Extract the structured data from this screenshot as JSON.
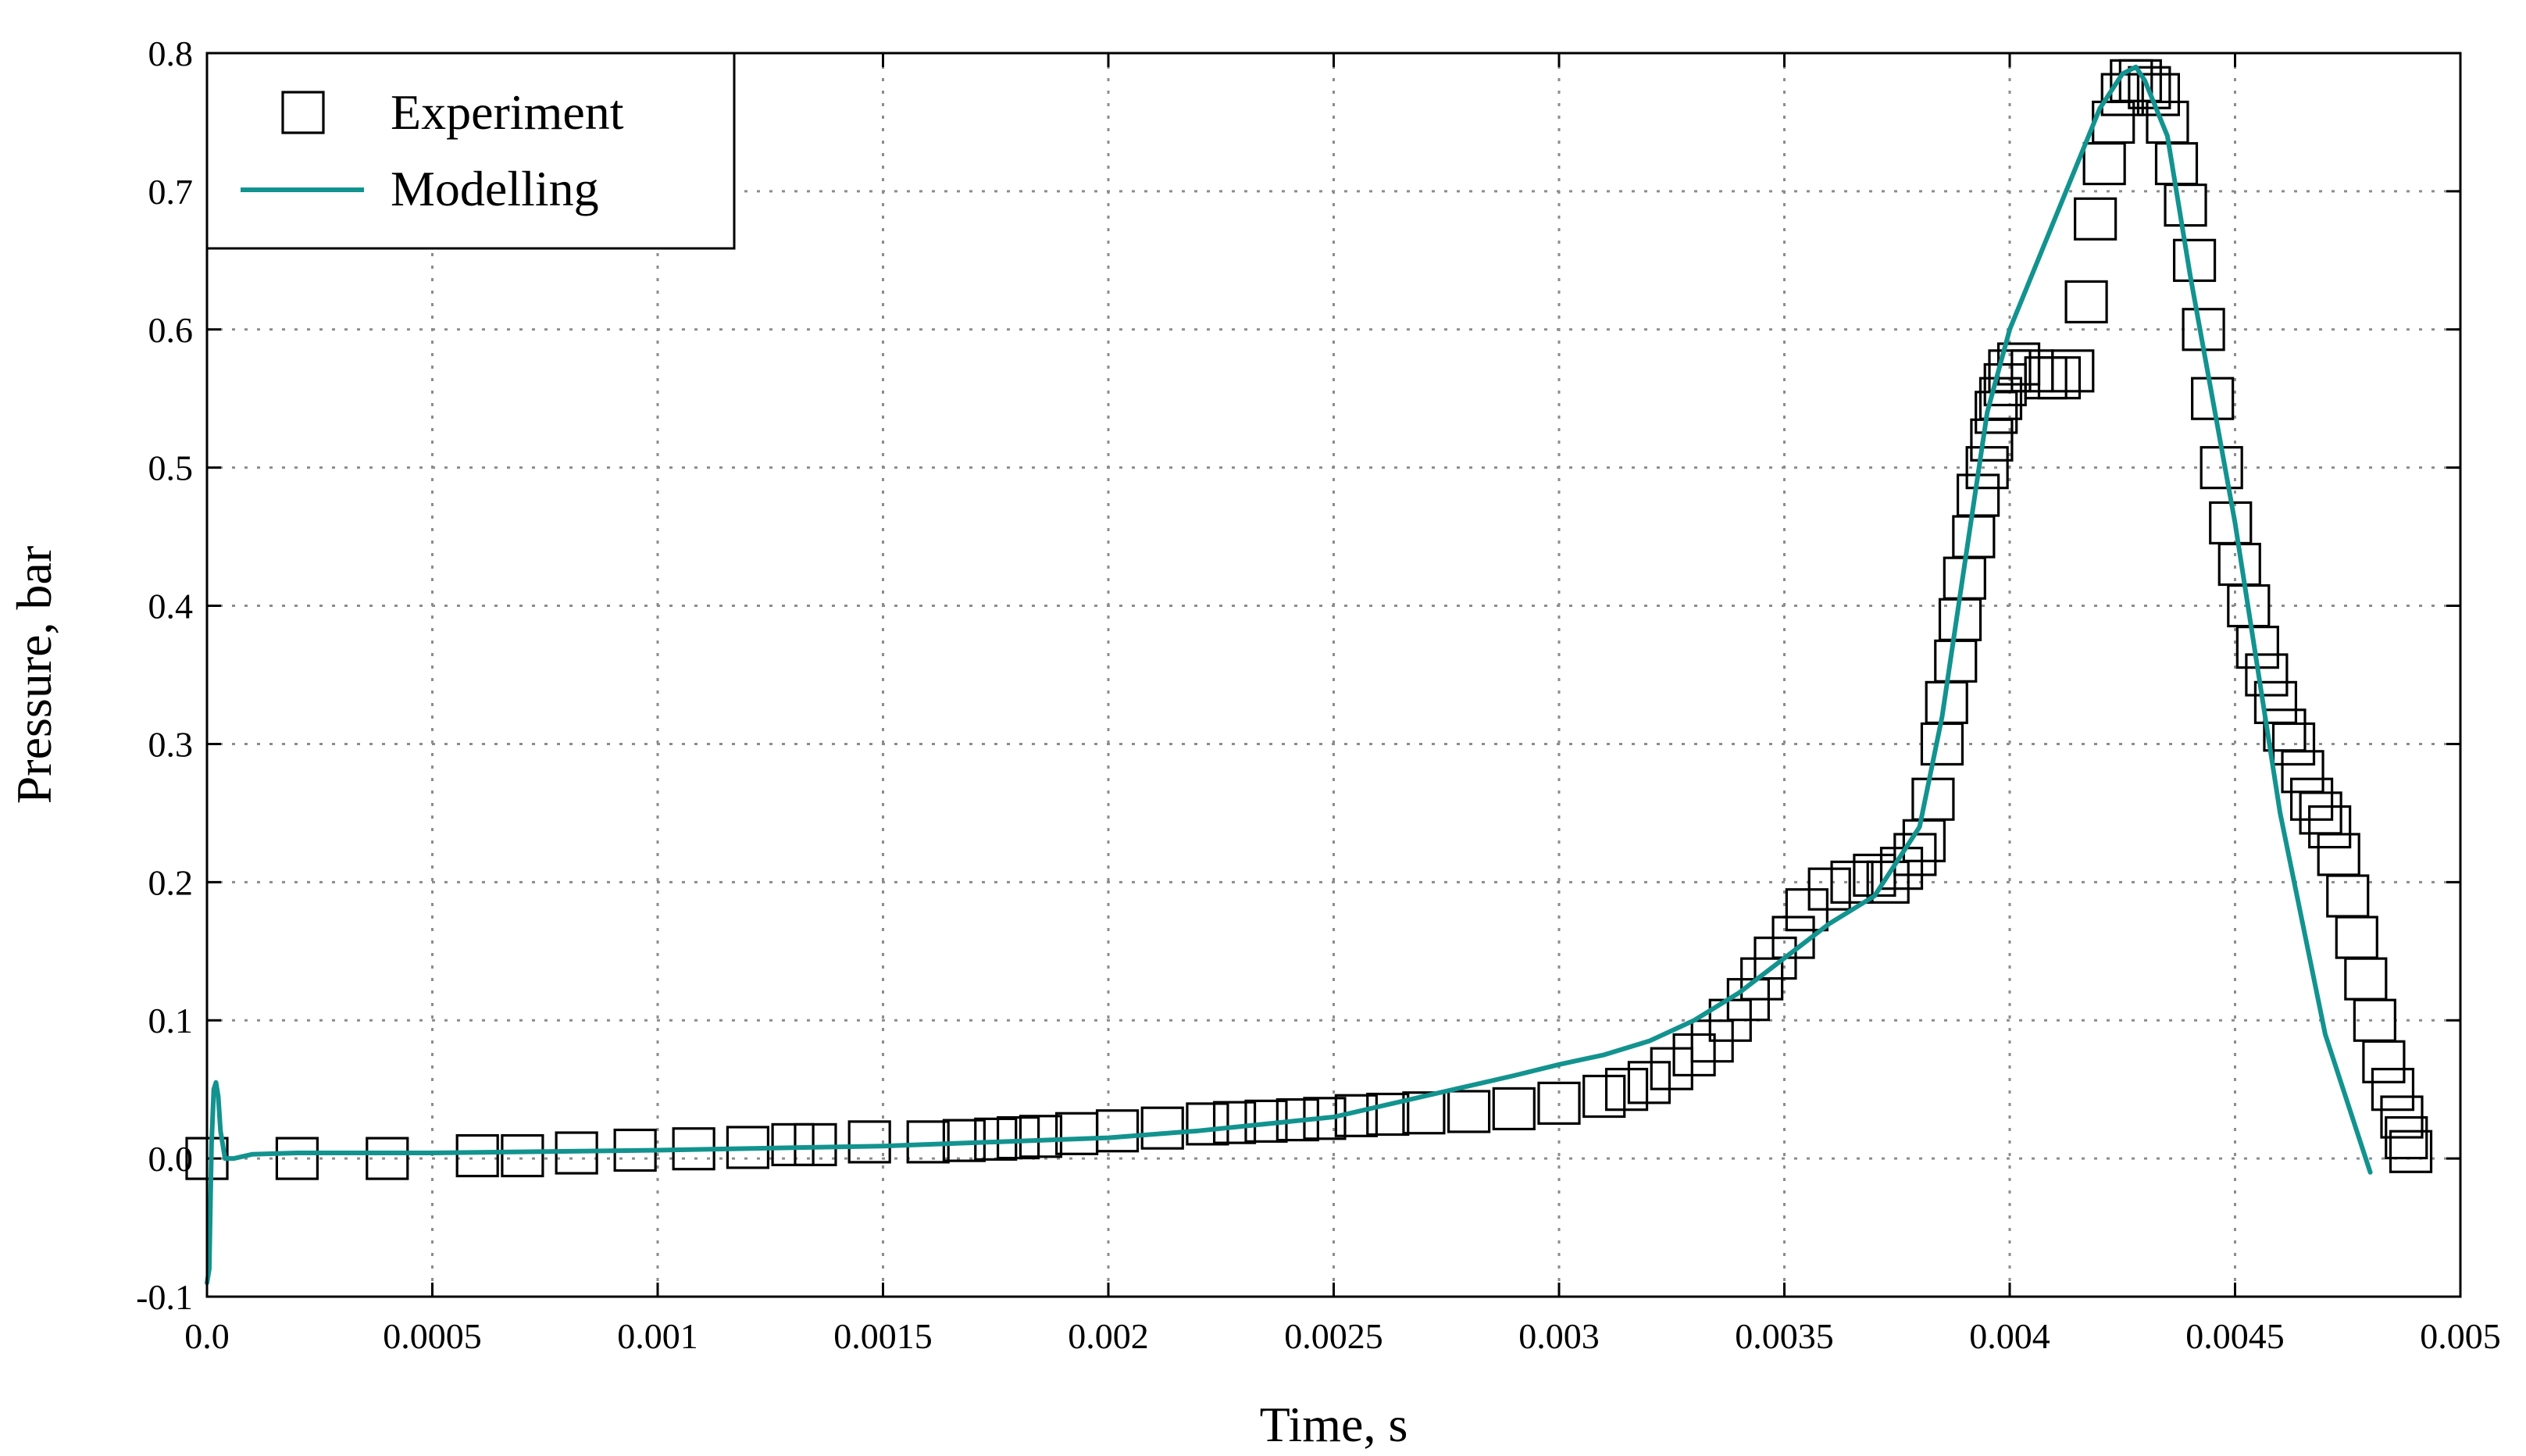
{
  "chart_data": {
    "type": "scatter",
    "xlabel": "Time, s",
    "ylabel": "Pressure, bar",
    "xlim": [
      0,
      0.005
    ],
    "ylim": [
      -0.1,
      0.8
    ],
    "xticks": [
      0,
      0.0005,
      0.001,
      0.0015,
      0.002,
      0.0025,
      0.003,
      0.0035,
      0.004,
      0.0045,
      0.005
    ],
    "xtick_labels": [
      "0.0",
      "0.0005",
      "0.001",
      "0.0015",
      "0.002",
      "0.0025",
      "0.003",
      "0.0035",
      "0.004",
      "0.0045",
      "0.005"
    ],
    "yticks": [
      -0.1,
      0.0,
      0.1,
      0.2,
      0.3,
      0.4,
      0.5,
      0.6,
      0.7,
      0.8
    ],
    "ytick_labels": [
      "-0.1",
      "0.0",
      "0.1",
      "0.2",
      "0.3",
      "0.4",
      "0.5",
      "0.6",
      "0.7",
      "0.8"
    ],
    "grid": true,
    "legend_position": "top-left",
    "series": [
      {
        "name": "Experiment",
        "kind": "markers",
        "marker": "open-square",
        "color": "#000000",
        "x": [
          0,
          0.0002,
          0.0004,
          0.0006,
          0.0007,
          0.00082,
          0.00095,
          0.00108,
          0.0012,
          0.0013,
          0.00135,
          0.00147,
          0.0016,
          0.00168,
          0.00175,
          0.0018,
          0.00185,
          0.00193,
          0.00202,
          0.00212,
          0.00222,
          0.00228,
          0.00235,
          0.00242,
          0.00248,
          0.00255,
          0.00262,
          0.0027,
          0.0028,
          0.0029,
          0.003,
          0.0031,
          0.00315,
          0.0032,
          0.00325,
          0.0033,
          0.00334,
          0.00338,
          0.00342,
          0.00345,
          0.00348,
          0.00352,
          0.00355,
          0.0036,
          0.00365,
          0.0037,
          0.00373,
          0.00376,
          0.00379,
          0.00381,
          0.00383,
          0.00385,
          0.00386,
          0.00388,
          0.00389,
          0.0039,
          0.00392,
          0.00393,
          0.00395,
          0.00396,
          0.00397,
          0.00398,
          0.00399,
          0.004,
          0.00402,
          0.00405,
          0.00408,
          0.00411,
          0.00414,
          0.00417,
          0.00419,
          0.00421,
          0.00423,
          0.00425,
          0.00427,
          0.00429,
          0.00431,
          0.00433,
          0.00435,
          0.00437,
          0.00439,
          0.00441,
          0.00443,
          0.00445,
          0.00447,
          0.00449,
          0.00451,
          0.00453,
          0.00455,
          0.00457,
          0.00459,
          0.00461,
          0.00463,
          0.00465,
          0.00467,
          0.00469,
          0.00471,
          0.00473,
          0.00475,
          0.00477,
          0.00479,
          0.00481,
          0.00483,
          0.00485,
          0.00487,
          0.00488,
          0.00489
        ],
        "y": [
          0.0,
          0.0,
          0.0,
          0.002,
          0.002,
          0.004,
          0.006,
          0.007,
          0.008,
          0.01,
          0.01,
          0.012,
          0.012,
          0.013,
          0.014,
          0.015,
          0.016,
          0.018,
          0.02,
          0.022,
          0.025,
          0.026,
          0.027,
          0.028,
          0.029,
          0.031,
          0.032,
          0.033,
          0.034,
          0.036,
          0.04,
          0.045,
          0.05,
          0.055,
          0.065,
          0.075,
          0.085,
          0.1,
          0.115,
          0.13,
          0.145,
          0.16,
          0.18,
          0.195,
          0.2,
          0.205,
          0.2,
          0.21,
          0.22,
          0.23,
          0.26,
          0.3,
          0.33,
          0.36,
          0.39,
          0.42,
          0.45,
          0.48,
          0.5,
          0.52,
          0.54,
          0.55,
          0.56,
          0.57,
          0.575,
          0.57,
          0.565,
          0.565,
          0.57,
          0.62,
          0.68,
          0.72,
          0.75,
          0.77,
          0.78,
          0.78,
          0.775,
          0.77,
          0.75,
          0.72,
          0.69,
          0.65,
          0.6,
          0.55,
          0.5,
          0.46,
          0.43,
          0.4,
          0.37,
          0.35,
          0.33,
          0.31,
          0.3,
          0.28,
          0.26,
          0.25,
          0.24,
          0.22,
          0.19,
          0.16,
          0.13,
          0.1,
          0.07,
          0.05,
          0.03,
          0.015,
          0.005
        ]
      },
      {
        "name": "Modelling",
        "kind": "line",
        "color": "#12938f",
        "x": [
          0,
          5e-06,
          1e-05,
          1.5e-05,
          2e-05,
          2.5e-05,
          3e-05,
          4e-05,
          6e-05,
          0.0001,
          0.0002,
          0.0005,
          0.001,
          0.0015,
          0.002,
          0.0022,
          0.0025,
          0.0027,
          0.0029,
          0.003,
          0.0031,
          0.0032,
          0.0033,
          0.0034,
          0.0035,
          0.0036,
          0.0037,
          0.0038,
          0.00385,
          0.0039,
          0.00395,
          0.004,
          0.0041,
          0.0042,
          0.00425,
          0.00428,
          0.0043,
          0.00435,
          0.0044,
          0.0045,
          0.0046,
          0.0047,
          0.0048
        ],
        "y": [
          -0.09,
          -0.08,
          0.01,
          0.05,
          0.055,
          0.045,
          0.02,
          0.0,
          0.0,
          0.003,
          0.004,
          0.004,
          0.006,
          0.009,
          0.015,
          0.02,
          0.03,
          0.045,
          0.06,
          0.068,
          0.075,
          0.085,
          0.1,
          0.12,
          0.145,
          0.17,
          0.19,
          0.24,
          0.32,
          0.43,
          0.54,
          0.6,
          0.68,
          0.76,
          0.785,
          0.79,
          0.78,
          0.74,
          0.64,
          0.46,
          0.25,
          0.09,
          -0.01
        ]
      }
    ]
  }
}
